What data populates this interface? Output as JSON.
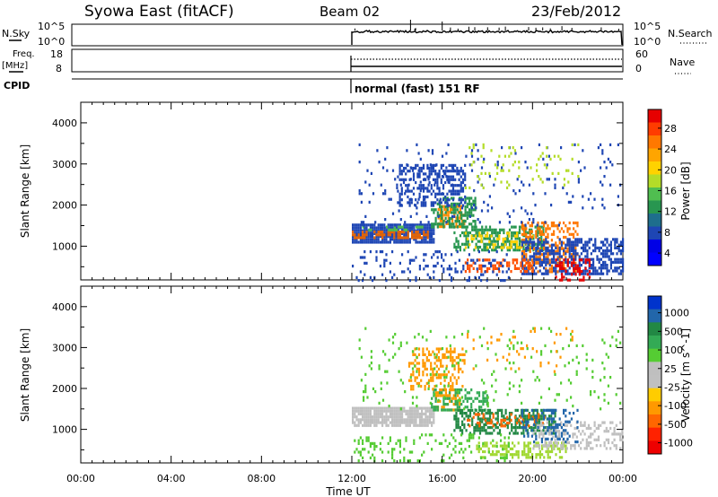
{
  "header": {
    "station": "Syowa East (fitACF)",
    "beam": "Beam 02",
    "date": "23/Feb/2012"
  },
  "top_panels": {
    "nsky_label": "N.Sky",
    "nsky_ticks": [
      "10^5",
      "10^0"
    ],
    "nsearch_ticks": [
      "10^5",
      "10^0"
    ],
    "nsearch_label": "N.Search",
    "freq_label": "Freq.",
    "freq_unit": "[MHz]",
    "freq_ticks": [
      "18",
      "8"
    ],
    "nave_ticks": [
      "60",
      "0"
    ],
    "nave_label": "Nave",
    "cpid_label": "CPID",
    "cpid_text": "normal (fast) 151 RF"
  },
  "x_axis": {
    "ticks": [
      "00:00",
      "04:00",
      "08:00",
      "12:00",
      "16:00",
      "20:00",
      "00:00"
    ],
    "label": "Time UT"
  },
  "power_panel": {
    "ylabel": "Slant Range [km]",
    "yticks": [
      "4000",
      "3000",
      "2000",
      "1000"
    ],
    "colorbar_label": "Power [dB]",
    "colorbar_ticks": [
      "28",
      "24",
      "20",
      "16",
      "12",
      "8",
      "4"
    ],
    "colors": [
      "#e60000",
      "#ff3c00",
      "#ff7800",
      "#ffa500",
      "#ffd200",
      "#b4dc28",
      "#50be50",
      "#289650",
      "#1e6e8c",
      "#1e46b4",
      "#0000e6",
      "#0000ff"
    ]
  },
  "velocity_panel": {
    "ylabel": "Slant Range [km]",
    "yticks": [
      "4000",
      "3000",
      "2000",
      "1000"
    ],
    "colorbar_label": "Velocity [m s^-1]",
    "colorbar_ticks": [
      "1000",
      "500",
      "100",
      "25",
      "-25",
      "-100",
      "-500",
      "-1000"
    ],
    "colors": [
      "#0033cc",
      "#2266aa",
      "#228844",
      "#33aa55",
      "#55cc33",
      "#bfbfbf",
      "#c0c0c0",
      "#ffcc00",
      "#ff9900",
      "#ff6600",
      "#ff2200",
      "#ee0000"
    ]
  },
  "chart_data": {
    "type": "heatmap",
    "x_unit": "hours UT",
    "xlim": [
      0,
      24
    ],
    "ylim_km": [
      180,
      4500
    ],
    "data_start_hour": 12,
    "power_blobs": [
      {
        "t0": 12.0,
        "t1": 15.6,
        "r0": 1100,
        "r1": 1550,
        "color": "#1e46b4",
        "density": 0.9
      },
      {
        "t0": 12.0,
        "t1": 15.4,
        "r0": 1200,
        "r1": 1380,
        "color": "#e66400",
        "density": 0.55
      },
      {
        "t0": 12.2,
        "t1": 15.2,
        "r0": 1380,
        "r1": 1500,
        "color": "#50be50",
        "density": 0.35
      },
      {
        "t0": 15.8,
        "t1": 17.0,
        "r0": 1500,
        "r1": 2000,
        "color": "#ff8c00",
        "density": 0.6
      },
      {
        "t0": 15.5,
        "t1": 17.5,
        "r0": 1500,
        "r1": 2200,
        "color": "#289650",
        "density": 0.5
      },
      {
        "t0": 14.0,
        "t1": 17.0,
        "r0": 2000,
        "r1": 3000,
        "color": "#1e46b4",
        "density": 0.45
      },
      {
        "t0": 16.5,
        "t1": 20.5,
        "r0": 900,
        "r1": 1500,
        "color": "#289650",
        "density": 0.55
      },
      {
        "t0": 17.0,
        "t1": 20.0,
        "r0": 950,
        "r1": 1350,
        "color": "#ffd200",
        "density": 0.3
      },
      {
        "t0": 19.5,
        "t1": 22.0,
        "r0": 400,
        "r1": 1600,
        "color": "#ff7800",
        "density": 0.45
      },
      {
        "t0": 19.5,
        "t1": 24.0,
        "r0": 300,
        "r1": 1200,
        "color": "#1e46b4",
        "density": 0.55
      },
      {
        "t0": 17.0,
        "t1": 20.0,
        "r0": 400,
        "r1": 700,
        "color": "#ff5000",
        "density": 0.4
      },
      {
        "t0": 12.0,
        "t1": 19.0,
        "r0": 200,
        "r1": 900,
        "color": "#1e46b4",
        "density": 0.15
      },
      {
        "t0": 12.3,
        "t1": 24.0,
        "r0": 1500,
        "r1": 3500,
        "color": "#1e46b4",
        "density": 0.05
      },
      {
        "t0": 17.0,
        "t1": 22.0,
        "r0": 2400,
        "r1": 3500,
        "color": "#b4dc28",
        "density": 0.06
      },
      {
        "t0": 21.0,
        "t1": 22.5,
        "r0": 180,
        "r1": 700,
        "color": "#e60000",
        "density": 0.35
      }
    ],
    "velocity_blobs": [
      {
        "t0": 12.0,
        "t1": 15.6,
        "r0": 1100,
        "r1": 1550,
        "color": "#bfbfbf",
        "density": 0.9
      },
      {
        "t0": 15.6,
        "t1": 16.8,
        "r0": 1500,
        "r1": 2000,
        "color": "#ff9900",
        "density": 0.5
      },
      {
        "t0": 15.5,
        "t1": 18.0,
        "r0": 1500,
        "r1": 2000,
        "color": "#33aa55",
        "density": 0.45
      },
      {
        "t0": 14.5,
        "t1": 17.0,
        "r0": 2000,
        "r1": 3000,
        "color": "#ff9900",
        "density": 0.35
      },
      {
        "t0": 16.5,
        "t1": 21.0,
        "r0": 900,
        "r1": 1500,
        "color": "#228844",
        "density": 0.55
      },
      {
        "t0": 17.0,
        "t1": 20.5,
        "r0": 1100,
        "r1": 1400,
        "color": "#ff6600",
        "density": 0.25
      },
      {
        "t0": 17.5,
        "t1": 21.5,
        "r0": 300,
        "r1": 700,
        "color": "#a0d830",
        "density": 0.45
      },
      {
        "t0": 20.0,
        "t1": 24.0,
        "r0": 500,
        "r1": 1200,
        "color": "#bfbfbf",
        "density": 0.35
      },
      {
        "t0": 19.5,
        "t1": 22.0,
        "r0": 700,
        "r1": 1500,
        "color": "#2266aa",
        "density": 0.3
      },
      {
        "t0": 12.0,
        "t1": 19.0,
        "r0": 200,
        "r1": 900,
        "color": "#55cc33",
        "density": 0.15
      },
      {
        "t0": 12.3,
        "t1": 24.0,
        "r0": 1500,
        "r1": 3500,
        "color": "#55cc33",
        "density": 0.05
      },
      {
        "t0": 17.0,
        "t1": 22.0,
        "r0": 2400,
        "r1": 3500,
        "color": "#ff9900",
        "density": 0.05
      }
    ]
  }
}
